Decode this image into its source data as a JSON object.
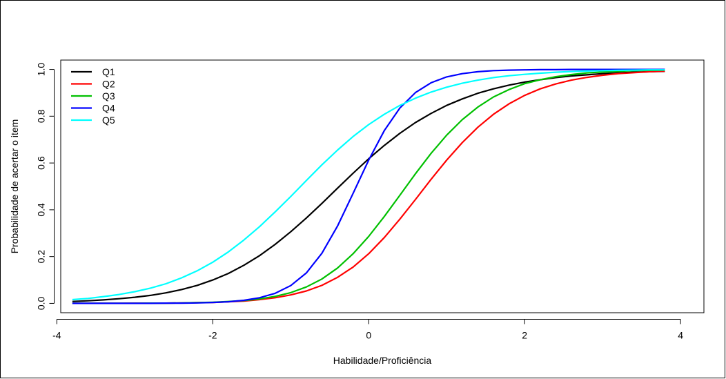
{
  "chart_data": {
    "type": "line",
    "title": "",
    "xlabel": "Habilidade/Proficiência",
    "ylabel": "Probabilidade de acertar o item",
    "xlim": [
      -3.95,
      4.3
    ],
    "ylim": [
      -0.04,
      1.04
    ],
    "xticks": [
      -4,
      -2,
      0,
      2,
      4
    ],
    "xtick_labels": [
      "-4",
      "-2",
      "0",
      "2",
      "4"
    ],
    "yticks": [
      0,
      0.2,
      0.4,
      0.6,
      0.8,
      1
    ],
    "ytick_labels": [
      "0.0",
      "0.2",
      "0.4",
      "0.6",
      "0.8",
      "1.0"
    ],
    "grid": false,
    "legend_position": "top-left",
    "x": [
      -3.8,
      -3.6,
      -3.4,
      -3.2,
      -3.0,
      -2.8,
      -2.6,
      -2.4,
      -2.2,
      -2.0,
      -1.8,
      -1.6,
      -1.4,
      -1.2,
      -1.0,
      -0.8,
      -0.6,
      -0.4,
      -0.2,
      0.0,
      0.2,
      0.4,
      0.6,
      0.8,
      1.0,
      1.2,
      1.4,
      1.6,
      1.8,
      2.0,
      2.2,
      2.4,
      2.6,
      2.8,
      3.0,
      3.2,
      3.4,
      3.6,
      3.8
    ],
    "series": [
      {
        "name": "Q1",
        "color": "#000000",
        "values": [
          0.008,
          0.011,
          0.015,
          0.02,
          0.026,
          0.034,
          0.045,
          0.059,
          0.077,
          0.1,
          0.128,
          0.163,
          0.204,
          0.252,
          0.306,
          0.365,
          0.427,
          0.492,
          0.556,
          0.618,
          0.675,
          0.727,
          0.773,
          0.812,
          0.846,
          0.874,
          0.898,
          0.917,
          0.933,
          0.946,
          0.956,
          0.965,
          0.972,
          0.977,
          0.982,
          0.985,
          0.988,
          0.99,
          0.992
        ]
      },
      {
        "name": "Q2",
        "color": "#ff0000",
        "values": [
          0.0,
          0.0,
          0.0,
          0.0,
          0.001,
          0.001,
          0.001,
          0.002,
          0.003,
          0.004,
          0.007,
          0.01,
          0.016,
          0.024,
          0.036,
          0.053,
          0.077,
          0.111,
          0.155,
          0.212,
          0.281,
          0.36,
          0.444,
          0.53,
          0.612,
          0.687,
          0.753,
          0.808,
          0.853,
          0.889,
          0.917,
          0.938,
          0.954,
          0.966,
          0.975,
          0.982,
          0.986,
          0.99,
          0.993
        ]
      },
      {
        "name": "Q3",
        "color": "#00c000",
        "values": [
          0.0,
          0.0,
          0.0,
          0.0,
          0.0,
          0.001,
          0.001,
          0.002,
          0.003,
          0.005,
          0.008,
          0.012,
          0.019,
          0.03,
          0.046,
          0.07,
          0.104,
          0.151,
          0.212,
          0.286,
          0.371,
          0.462,
          0.554,
          0.641,
          0.719,
          0.785,
          0.839,
          0.882,
          0.914,
          0.939,
          0.956,
          0.969,
          0.978,
          0.985,
          0.989,
          0.992,
          0.995,
          0.996,
          0.997
        ]
      },
      {
        "name": "Q4",
        "color": "#0000ff",
        "values": [
          0.0,
          0.0,
          0.0,
          0.0,
          0.0,
          0.0,
          0.001,
          0.001,
          0.002,
          0.004,
          0.007,
          0.013,
          0.024,
          0.043,
          0.076,
          0.13,
          0.214,
          0.33,
          0.47,
          0.612,
          0.738,
          0.835,
          0.901,
          0.943,
          0.968,
          0.982,
          0.99,
          0.995,
          0.997,
          0.998,
          0.999,
          0.999,
          1.0,
          1.0,
          1.0,
          1.0,
          1.0,
          1.0,
          1.0
        ]
      },
      {
        "name": "Q5",
        "color": "#00ffff",
        "values": [
          0.016,
          0.021,
          0.029,
          0.038,
          0.05,
          0.065,
          0.084,
          0.109,
          0.139,
          0.176,
          0.22,
          0.271,
          0.328,
          0.391,
          0.457,
          0.525,
          0.592,
          0.655,
          0.713,
          0.764,
          0.808,
          0.846,
          0.877,
          0.903,
          0.924,
          0.941,
          0.954,
          0.965,
          0.973,
          0.979,
          0.984,
          0.988,
          0.991,
          0.993,
          0.995,
          0.996,
          0.997,
          0.998,
          0.998
        ]
      }
    ]
  }
}
